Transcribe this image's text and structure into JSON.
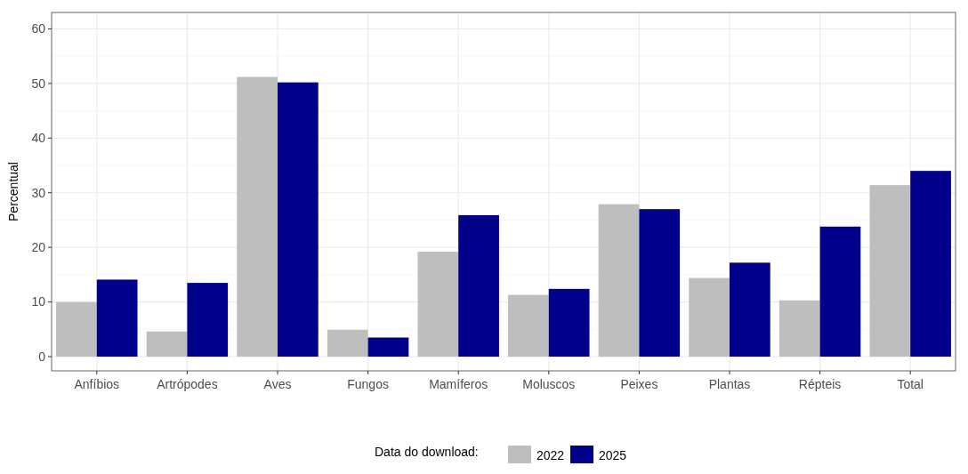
{
  "chart_data": {
    "type": "bar",
    "ylabel": "Percentual",
    "legend_title": "Data do download:",
    "categories": [
      "Anfíbios",
      "Artrópodes",
      "Aves",
      "Fungos",
      "Mamíferos",
      "Moluscos",
      "Peixes",
      "Plantas",
      "Répteis",
      "Total"
    ],
    "series": [
      {
        "name": "2022",
        "color": "#bebebe",
        "values": [
          10.0,
          4.6,
          51.2,
          4.9,
          19.2,
          11.3,
          27.9,
          14.4,
          10.3,
          31.4
        ]
      },
      {
        "name": "2025",
        "color": "#00008b",
        "values": [
          14.1,
          13.5,
          50.2,
          3.5,
          25.9,
          12.4,
          27.0,
          17.2,
          23.8,
          34.0
        ]
      }
    ],
    "ylim": [
      -2.6,
      63
    ],
    "yticks": [
      0,
      10,
      20,
      30,
      40,
      50,
      60
    ],
    "grid": true,
    "legend": "bottom"
  }
}
